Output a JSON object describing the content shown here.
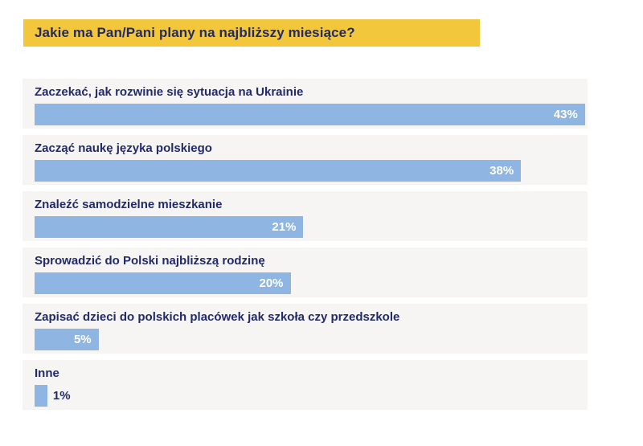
{
  "title": {
    "text": "Jakie ma Pan/Pani plany na najbliższy miesiące?"
  },
  "colors": {
    "title_bg": "#F2C73C",
    "title_text": "#222A68",
    "bar_fill": "#8FB5E2",
    "row_bg": "#F6F5F4",
    "value_label_inside": "#FFFFFF",
    "value_label_outside": "#222A68"
  },
  "chart_data": {
    "type": "bar",
    "orientation": "horizontal",
    "title": "Jakie ma Pan/Pani plany na najbliższy miesiące?",
    "categories": [
      "Zaczekać, jak rozwinie się sytuacja na Ukrainie",
      "Zacząć naukę języka polskiego",
      "Znaleźć samodzielne mieszkanie",
      "Sprowadzić do Polski najbliższą rodzinę",
      "Zapisać dzieci do polskich placówek jak szkoła czy przedszkole",
      "Inne"
    ],
    "values": [
      43,
      38,
      21,
      20,
      5,
      1
    ],
    "value_labels": [
      "43%",
      "38%",
      "21%",
      "20%",
      "5%",
      "1%"
    ],
    "value_label_positions": [
      "inside",
      "inside",
      "inside",
      "inside",
      "inside",
      "outside"
    ],
    "xlabel": "",
    "ylabel": "",
    "xlim": [
      0,
      43.2
    ],
    "grid": false,
    "legend": false
  }
}
